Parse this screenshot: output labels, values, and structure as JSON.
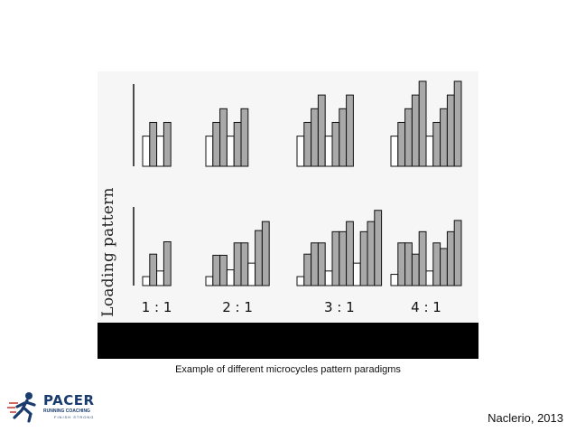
{
  "slide": {
    "caption": "Example of different microcycles pattern paradigms",
    "citation": "Naclerio, 2013"
  },
  "logo": {
    "word": "PACER",
    "sub": "RUNNING COACHING",
    "tag": "FINISH STRONG",
    "colors": {
      "primary": "#1a3b6e",
      "accent": "#c0392b"
    }
  },
  "chart_data": {
    "type": "bar",
    "ylabel": "Loading pattern",
    "colors": {
      "loading": "#a9a9a9",
      "unloading": "#ffffff",
      "stroke": "#111111",
      "axis": "#222222"
    },
    "groups": [
      {
        "label": "1:1"
      },
      {
        "label": "2:1"
      },
      {
        "label": "3:1"
      },
      {
        "label": "4:1"
      }
    ],
    "panels": [
      {
        "name": "top",
        "ylim": [
          0,
          6
        ],
        "groups": [
          {
            "bars": [
              {
                "v": 2.2,
                "t": "u"
              },
              {
                "v": 3.2,
                "t": "l"
              },
              {
                "v": 2.2,
                "t": "u"
              },
              {
                "v": 3.2,
                "t": "l"
              }
            ]
          },
          {
            "bars": [
              {
                "v": 2.2,
                "t": "u"
              },
              {
                "v": 3.2,
                "t": "l"
              },
              {
                "v": 4.2,
                "t": "l"
              },
              {
                "v": 2.2,
                "t": "u"
              },
              {
                "v": 3.2,
                "t": "l"
              },
              {
                "v": 4.2,
                "t": "l"
              }
            ]
          },
          {
            "bars": [
              {
                "v": 2.2,
                "t": "u"
              },
              {
                "v": 3.2,
                "t": "l"
              },
              {
                "v": 4.2,
                "t": "l"
              },
              {
                "v": 5.2,
                "t": "l"
              },
              {
                "v": 2.2,
                "t": "u"
              },
              {
                "v": 3.2,
                "t": "l"
              },
              {
                "v": 4.2,
                "t": "l"
              },
              {
                "v": 5.2,
                "t": "l"
              }
            ]
          },
          {
            "bars": [
              {
                "v": 2.2,
                "t": "u"
              },
              {
                "v": 3.2,
                "t": "l"
              },
              {
                "v": 4.2,
                "t": "l"
              },
              {
                "v": 5.2,
                "t": "l"
              },
              {
                "v": 6.2,
                "t": "l"
              },
              {
                "v": 2.2,
                "t": "u"
              },
              {
                "v": 3.2,
                "t": "l"
              },
              {
                "v": 4.2,
                "t": "l"
              },
              {
                "v": 5.2,
                "t": "l"
              },
              {
                "v": 6.2,
                "t": "l"
              }
            ]
          }
        ]
      },
      {
        "name": "bottom",
        "ylim": [
          0,
          7
        ],
        "groups": [
          {
            "bars": [
              {
                "v": 0.8,
                "t": "u"
              },
              {
                "v": 2.8,
                "t": "l"
              },
              {
                "v": 1.3,
                "t": "u"
              },
              {
                "v": 3.9,
                "t": "l"
              }
            ]
          },
          {
            "bars": [
              {
                "v": 0.8,
                "t": "u"
              },
              {
                "v": 2.7,
                "t": "l"
              },
              {
                "v": 2.7,
                "t": "l"
              },
              {
                "v": 1.4,
                "t": "u"
              },
              {
                "v": 3.8,
                "t": "l"
              },
              {
                "v": 3.8,
                "t": "l"
              },
              {
                "v": 2.0,
                "t": "u"
              },
              {
                "v": 4.9,
                "t": "l"
              },
              {
                "v": 5.7,
                "t": "l"
              }
            ]
          },
          {
            "bars": [
              {
                "v": 0.8,
                "t": "u"
              },
              {
                "v": 2.8,
                "t": "l"
              },
              {
                "v": 3.8,
                "t": "l"
              },
              {
                "v": 3.8,
                "t": "l"
              },
              {
                "v": 1.3,
                "t": "u"
              },
              {
                "v": 4.8,
                "t": "l"
              },
              {
                "v": 4.8,
                "t": "l"
              },
              {
                "v": 5.7,
                "t": "l"
              },
              {
                "v": 2.0,
                "t": "u"
              },
              {
                "v": 4.8,
                "t": "l"
              },
              {
                "v": 5.7,
                "t": "l"
              },
              {
                "v": 6.7,
                "t": "l"
              }
            ]
          },
          {
            "bars": [
              {
                "v": 1.0,
                "t": "u"
              },
              {
                "v": 3.8,
                "t": "l"
              },
              {
                "v": 3.8,
                "t": "l"
              },
              {
                "v": 2.8,
                "t": "l"
              },
              {
                "v": 4.8,
                "t": "l"
              },
              {
                "v": 1.3,
                "t": "u"
              },
              {
                "v": 3.8,
                "t": "l"
              },
              {
                "v": 3.3,
                "t": "l"
              },
              {
                "v": 4.8,
                "t": "l"
              },
              {
                "v": 5.8,
                "t": "l"
              }
            ]
          }
        ]
      }
    ]
  }
}
